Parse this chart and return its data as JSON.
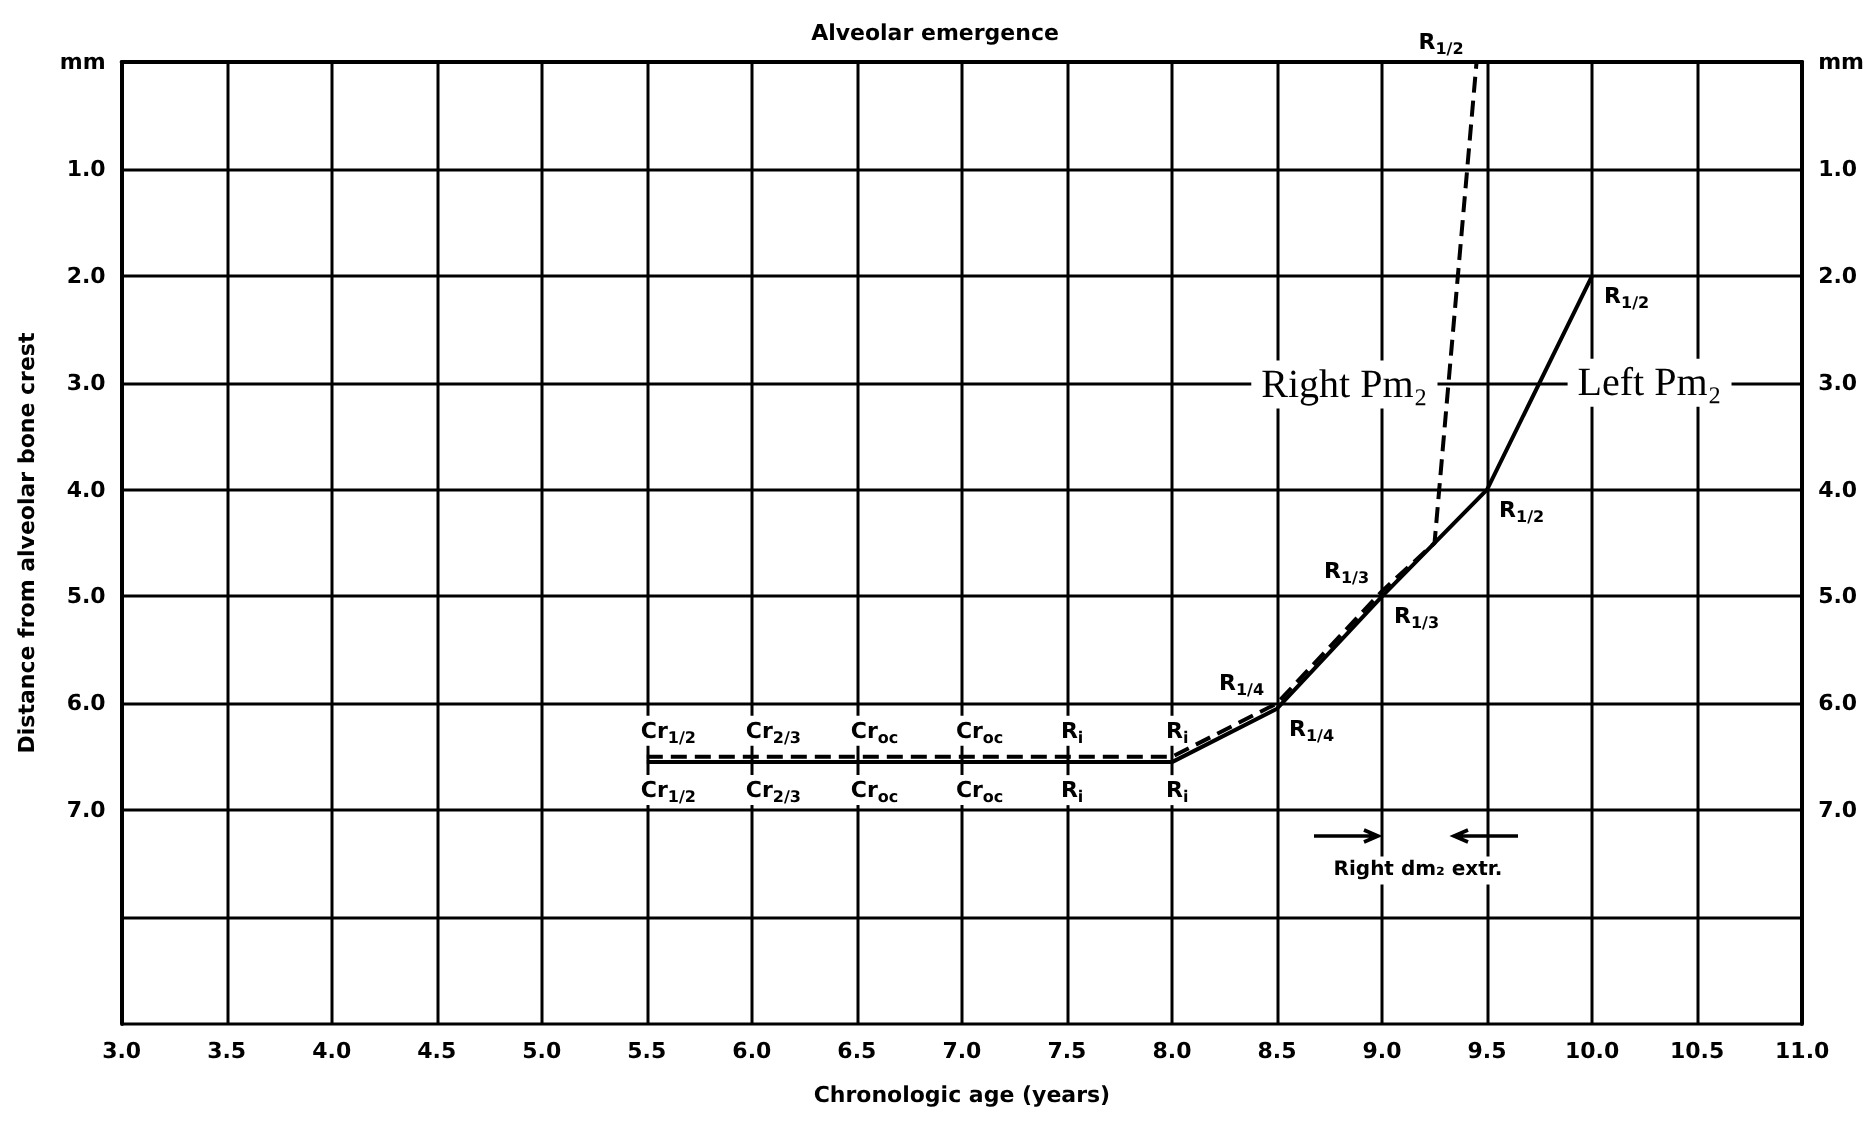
{
  "chart_data": {
    "type": "line",
    "title": "Alveolar emergence",
    "xlabel": "Chronologic age (years)",
    "ylabel": "Distance from alveolar bone crest",
    "series": [
      {
        "name": "Right Pm₂",
        "color": "#000000",
        "line_style": "dashed",
        "x": [
          5.5,
          6.0,
          6.5,
          7.0,
          7.5,
          8.0,
          8.5,
          9.0,
          9.25,
          9.45
        ],
        "values": [
          6.5,
          6.5,
          6.5,
          6.5,
          6.5,
          6.5,
          6.0,
          4.95,
          4.5,
          0
        ],
        "value_labels": [
          "Cr$_{1/2}$",
          "Cr$_{2/3}$",
          "Cr$_{oc}$",
          "Cr$_{oc}$",
          "R$_{i}$",
          "R$_{i}$",
          "R$_{1/4}$",
          "R$_{1/3}$",
          null,
          "R$_{1/2}$"
        ]
      },
      {
        "name": "Left Pm₂",
        "color": "#000000",
        "line_style": "solid",
        "x": [
          5.5,
          6.0,
          6.5,
          7.0,
          7.5,
          8.0,
          8.5,
          9.0,
          9.5,
          10.0
        ],
        "values": [
          6.55,
          6.55,
          6.55,
          6.55,
          6.55,
          6.55,
          6.05,
          5.0,
          4.0,
          2.0
        ],
        "value_labels": [
          "Cr$_{1/2}$",
          "Cr$_{2/3}$",
          "Cr$_{oc}$",
          "Cr$_{oc}$",
          "R$_{i}$",
          "R$_{i}$",
          "R$_{1/4}$",
          "R$_{1/3}$",
          "R$_{1/2}$",
          "R$_{1/2}$"
        ]
      }
    ],
    "marker": "none",
    "xlim": [
      3,
      11
    ],
    "xticks": [
      {
        "value": 3,
        "label": "3.0"
      },
      {
        "value": 3.5,
        "label": "3.5"
      },
      {
        "value": 4,
        "label": "4.0"
      },
      {
        "value": 4.5,
        "label": "4.5"
      },
      {
        "value": 5,
        "label": "5.0"
      },
      {
        "value": 5.5,
        "label": "5.5"
      },
      {
        "value": 6,
        "label": "6.0"
      },
      {
        "value": 6.5,
        "label": "6.5"
      },
      {
        "value": 7,
        "label": "7.0"
      },
      {
        "value": 7.5,
        "label": "7.5"
      },
      {
        "value": 8,
        "label": "8.0"
      },
      {
        "value": 8.5,
        "label": "8.5"
      },
      {
        "value": 9,
        "label": "9.0"
      },
      {
        "value": 9.5,
        "label": "9.5"
      },
      {
        "value": 10,
        "label": "10.0"
      },
      {
        "value": 10.5,
        "label": "10.5"
      },
      {
        "value": 11,
        "label": "11.0"
      }
    ],
    "ylim": [
      9,
      0
    ],
    "yticks": [
      {
        "value": 0,
        "label": "mm"
      },
      {
        "value": 1,
        "label": "1.0"
      },
      {
        "value": 2,
        "label": "2.0"
      },
      {
        "value": 3,
        "label": "3.0"
      },
      {
        "value": 4,
        "label": "4.0"
      },
      {
        "value": 5,
        "label": "5.0"
      },
      {
        "value": 6,
        "label": "6.0"
      },
      {
        "value": 7,
        "label": "7.0"
      },
      {
        "value": 8,
        "label": null
      },
      {
        "value": 9,
        "label": null
      }
    ],
    "y2lim": [
      9,
      0
    ],
    "y2ticks": [
      {
        "value": 0,
        "label": "mm"
      },
      {
        "value": 1,
        "label": "1.0"
      },
      {
        "value": 2,
        "label": "2.0"
      },
      {
        "value": 3,
        "label": "3.0"
      },
      {
        "value": 4,
        "label": "4.0"
      },
      {
        "value": 5,
        "label": "5.0"
      },
      {
        "value": 6,
        "label": "6.0"
      },
      {
        "value": 7,
        "label": "7.0"
      },
      {
        "value": 8,
        "label": null
      },
      {
        "value": 9,
        "label": null
      }
    ],
    "grid": true,
    "annotations": [
      "Right dm₂ extr."
    ]
  }
}
